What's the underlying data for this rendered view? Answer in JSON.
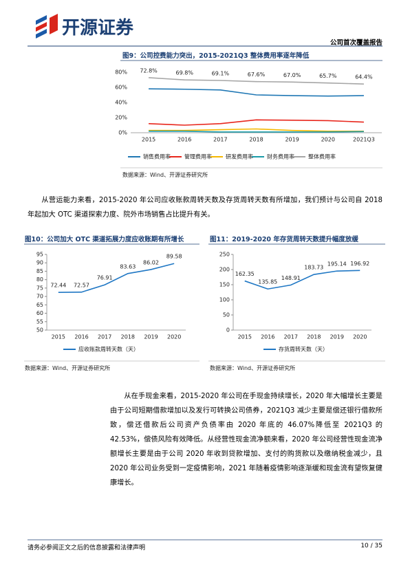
{
  "header": {
    "brand": "开源证券",
    "report_type": "公司首次覆盖报告"
  },
  "paragraphs": [
    "从营运能力来看，2015-2020 年公司应收账款周转天数及存货周转天数有所增加，我们预计与公司自 2018 年起加大 OTC 渠道探索力度、院外市场销售占比提升有关。",
    "从在手现金来看，2015-2020 年公司在手现金持续增长，2020 年大幅增长主要是由于公司短期借款增加以及发行可转换公司债券，2021Q3 减少主要是偿还银行借款所致，偿还借款后公司资产负债率由 2020 年底的 46.07%降低至 2021Q3 的 42.53%，偿债风险有效降低。从经营性现金流净额来看，2020 年公司经营性现金流净额增长主要是由于公司 2020 年收到贷款增加、支付的购货款以及缴纳税金减少，且 2020 年公司业务受到一定疫情影响，2021 年随着疫情影响逐渐缓和现金流有望恢复健康增长。"
  ],
  "footer": {
    "disclaimer": "请务必参阅正文之后的信息披露和法律声明",
    "page": "10 / 35"
  },
  "chart_data": [
    {
      "type": "line",
      "title": "图9：公司控费能力突出，2015-2021Q3 整体费用率逐年降低",
      "source": "数据来源：Wind、开源证券研究所",
      "categories": [
        "2015",
        "2016",
        "2017",
        "2018",
        "2019",
        "2020",
        "2021Q3"
      ],
      "ylim": [
        0,
        80
      ],
      "yticks": [
        {
          "value": 0,
          "label": "0%"
        },
        {
          "value": 20,
          "label": "20%"
        },
        {
          "value": 40,
          "label": "40%"
        },
        {
          "value": 60,
          "label": "60%"
        },
        {
          "value": 80,
          "label": "80%"
        }
      ],
      "series": [
        {
          "name": "销售费用率",
          "color": "#1f77b4",
          "values": [
            58,
            57.5,
            56.5,
            50,
            49,
            48.5,
            49
          ]
        },
        {
          "name": "管理费用率",
          "color": "#e8261c",
          "values": [
            12,
            10,
            12,
            17,
            16.5,
            16,
            14
          ]
        },
        {
          "name": "研发费用率",
          "color": "#f5b800",
          "values": [
            3,
            3,
            4,
            5,
            3,
            2,
            2
          ]
        },
        {
          "name": "财务费用率",
          "color": "#1a9ba8",
          "values": [
            2,
            2,
            1,
            1,
            1,
            1,
            1.5
          ]
        },
        {
          "name": "整体费用率",
          "color": "#a6a6a6",
          "values": [
            72.8,
            69.8,
            69.1,
            67.6,
            67.0,
            65.7,
            64.4
          ],
          "value_labels": [
            "72.8%",
            "69.8%",
            "69.1%",
            "67.6%",
            "67.0%",
            "65.7%",
            "64.4%"
          ]
        }
      ]
    },
    {
      "type": "line",
      "title": "图10：公司加大 OTC 渠道拓展力度应收账期有所增长",
      "source": "数据来源：Wind、开源证券研究所",
      "categories": [
        "2015",
        "2016",
        "2017",
        "2018",
        "2019",
        "2020"
      ],
      "ylim": [
        50,
        95
      ],
      "yticks": [
        50,
        55,
        60,
        65,
        70,
        75,
        80,
        85,
        90,
        95
      ],
      "series": [
        {
          "name": "应收账款周转天数（天）",
          "color": "#1f77c4",
          "values": [
            72.44,
            72.57,
            76.91,
            83.63,
            86.02,
            89.58
          ],
          "data_labels": true
        }
      ]
    },
    {
      "type": "line",
      "title": "图11：2019-2020 年存货周转天数提升幅度放缓",
      "source": "数据来源：Wind、开源证券研究所",
      "categories": [
        "2015",
        "2016",
        "2017",
        "2018",
        "2019",
        "2020"
      ],
      "ylim": [
        0,
        250
      ],
      "yticks": [
        0,
        50,
        100,
        150,
        200,
        250
      ],
      "series": [
        {
          "name": "存货周转天数（天）",
          "color": "#1f77c4",
          "values": [
            162.35,
            135.85,
            148.91,
            183.73,
            195.14,
            196.92
          ],
          "data_labels": true
        }
      ]
    }
  ]
}
